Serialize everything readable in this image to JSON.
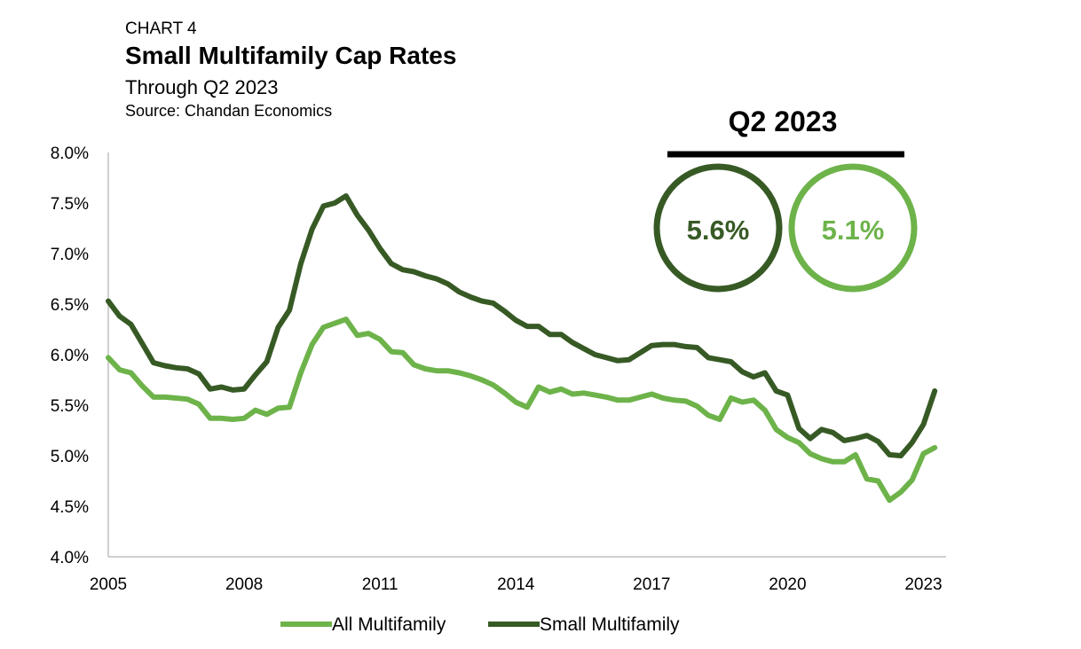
{
  "header": {
    "kicker": "CHART 4",
    "title": "Small Multifamily Cap Rates",
    "subtitle": "Through Q2 2023",
    "source": "Source: Chandan Economics"
  },
  "callout": {
    "title": "Q2 2023",
    "small_value": "5.6%",
    "all_value": "5.1%"
  },
  "colors": {
    "all_multifamily": "#6db34a",
    "small_multifamily": "#375a25",
    "axis": "#bfbfbf"
  },
  "chart_data": {
    "type": "line",
    "title": "Small Multifamily Cap Rates",
    "xlabel": "",
    "ylabel": "",
    "x_start": 2005.0,
    "x_step": 0.25,
    "xlim": [
      2005.0,
      2023.5
    ],
    "ylim": [
      4.0,
      8.0
    ],
    "x_ticks": [
      "2005",
      "2008",
      "2011",
      "2014",
      "2017",
      "2020",
      "2023"
    ],
    "y_ticks": [
      "4.0%",
      "4.5%",
      "5.0%",
      "5.5%",
      "6.0%",
      "6.5%",
      "7.0%",
      "7.5%",
      "8.0%"
    ],
    "legend": "bottom",
    "grid": false,
    "series": [
      {
        "name": "All Multifamily",
        "values": [
          5.97,
          5.85,
          5.82,
          5.69,
          5.58,
          5.58,
          5.57,
          5.56,
          5.51,
          5.37,
          5.37,
          5.36,
          5.37,
          5.45,
          5.41,
          5.47,
          5.48,
          5.82,
          6.1,
          6.27,
          6.31,
          6.35,
          6.19,
          6.21,
          6.15,
          6.03,
          6.02,
          5.9,
          5.86,
          5.84,
          5.84,
          5.82,
          5.79,
          5.75,
          5.7,
          5.62,
          5.53,
          5.48,
          5.68,
          5.63,
          5.66,
          5.61,
          5.62,
          5.6,
          5.58,
          5.55,
          5.55,
          5.58,
          5.61,
          5.57,
          5.55,
          5.54,
          5.49,
          5.4,
          5.36,
          5.57,
          5.53,
          5.55,
          5.45,
          5.26,
          5.18,
          5.13,
          5.02,
          4.97,
          4.94,
          4.94,
          5.01,
          4.77,
          4.75,
          4.56,
          4.64,
          4.76,
          5.02,
          5.08
        ]
      },
      {
        "name": "Small Multifamily",
        "values": [
          6.53,
          6.38,
          6.3,
          6.11,
          5.92,
          5.89,
          5.87,
          5.86,
          5.81,
          5.66,
          5.68,
          5.65,
          5.66,
          5.8,
          5.93,
          6.27,
          6.44,
          6.9,
          7.24,
          7.47,
          7.5,
          7.57,
          7.38,
          7.23,
          7.05,
          6.9,
          6.84,
          6.82,
          6.78,
          6.75,
          6.7,
          6.62,
          6.57,
          6.53,
          6.51,
          6.43,
          6.34,
          6.28,
          6.28,
          6.2,
          6.2,
          6.12,
          6.06,
          6.0,
          5.97,
          5.94,
          5.95,
          6.02,
          6.09,
          6.1,
          6.1,
          6.08,
          6.07,
          5.97,
          5.95,
          5.93,
          5.83,
          5.78,
          5.82,
          5.64,
          5.6,
          5.27,
          5.17,
          5.26,
          5.23,
          5.15,
          5.17,
          5.2,
          5.14,
          5.01,
          5.0,
          5.13,
          5.31,
          5.64
        ]
      }
    ]
  }
}
